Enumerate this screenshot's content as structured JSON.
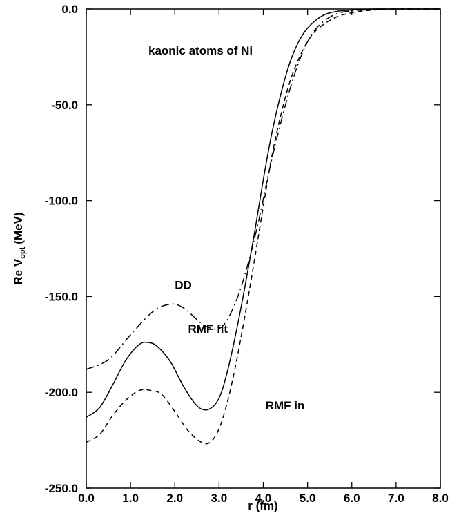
{
  "chart_data": {
    "type": "line",
    "title": "",
    "annotation": "kaonic atoms of Ni",
    "xlabel": "r (fm)",
    "ylabel": {
      "main": "Re V",
      "sub": "opt",
      "unit": "(MeV)"
    },
    "xlim": [
      0.0,
      8.0
    ],
    "ylim": [
      -250.0,
      0.0
    ],
    "grid": false,
    "legend": "none",
    "x_ticks": [
      {
        "value": 0.0,
        "label": "0.0"
      },
      {
        "value": 1.0,
        "label": "1.0"
      },
      {
        "value": 2.0,
        "label": "2.0"
      },
      {
        "value": 3.0,
        "label": "3.0"
      },
      {
        "value": 4.0,
        "label": "4.0"
      },
      {
        "value": 5.0,
        "label": "5.0"
      },
      {
        "value": 6.0,
        "label": "6.0"
      },
      {
        "value": 7.0,
        "label": "7.0"
      },
      {
        "value": 8.0,
        "label": "8.0"
      }
    ],
    "y_ticks": [
      {
        "value": 0.0,
        "label": "0.0"
      },
      {
        "value": -50.0,
        "label": "-50.0"
      },
      {
        "value": -100.0,
        "label": "-100.0"
      },
      {
        "value": -150.0,
        "label": "-150.0"
      },
      {
        "value": -200.0,
        "label": "-200.0"
      },
      {
        "value": -250.0,
        "label": "-250.0"
      }
    ],
    "series": [
      {
        "name": "DD",
        "style": "dash-dot",
        "label_at": [
          2.0,
          -146
        ],
        "x": [
          0.0,
          0.5,
          1.0,
          1.5,
          1.9,
          2.2,
          2.6,
          2.9,
          3.1,
          3.3,
          3.5,
          3.7,
          3.9,
          4.1,
          4.3,
          4.6,
          4.9,
          5.2,
          5.6,
          6.0,
          6.5,
          7.0,
          7.5,
          8.0
        ],
        "y": [
          -188,
          -183,
          -170,
          -158,
          -154,
          -156,
          -164,
          -167,
          -165,
          -157,
          -145,
          -129,
          -110,
          -88,
          -68,
          -42,
          -22,
          -10,
          -3,
          -1,
          -0.3,
          0,
          0,
          0
        ]
      },
      {
        "name": "RMF fit",
        "style": "solid",
        "label_at": [
          2.3,
          -169
        ],
        "x": [
          0.0,
          0.3,
          0.6,
          0.9,
          1.2,
          1.4,
          1.6,
          1.9,
          2.2,
          2.5,
          2.75,
          3.0,
          3.2,
          3.4,
          3.6,
          3.8,
          4.0,
          4.2,
          4.4,
          4.6,
          4.8,
          5.0,
          5.3,
          5.6,
          6.0,
          6.5,
          7.0,
          7.5,
          8.0
        ],
        "y": [
          -213,
          -208,
          -196,
          -183,
          -175,
          -174,
          -176,
          -184,
          -197,
          -207,
          -209,
          -203,
          -188,
          -167,
          -143,
          -117,
          -89,
          -64,
          -44,
          -28,
          -17,
          -10,
          -4,
          -1.5,
          -0.5,
          0,
          0,
          0,
          0
        ]
      },
      {
        "name": "RMF in",
        "style": "dashed",
        "label_at": [
          4.05,
          -209
        ],
        "x": [
          0.0,
          0.3,
          0.6,
          0.9,
          1.2,
          1.45,
          1.7,
          2.0,
          2.3,
          2.6,
          2.8,
          3.0,
          3.2,
          3.4,
          3.6,
          3.8,
          4.0,
          4.2,
          4.4,
          4.6,
          4.8,
          5.0,
          5.2,
          5.5,
          5.8,
          6.2,
          6.6,
          7.0,
          7.5,
          8.0
        ],
        "y": [
          -226,
          -222,
          -212,
          -204,
          -199,
          -199,
          -201,
          -210,
          -220,
          -226,
          -226,
          -219,
          -204,
          -183,
          -158,
          -131,
          -103,
          -76,
          -55,
          -38,
          -26,
          -17,
          -11,
          -6,
          -3,
          -1.2,
          -0.4,
          0,
          0,
          0
        ]
      }
    ]
  }
}
